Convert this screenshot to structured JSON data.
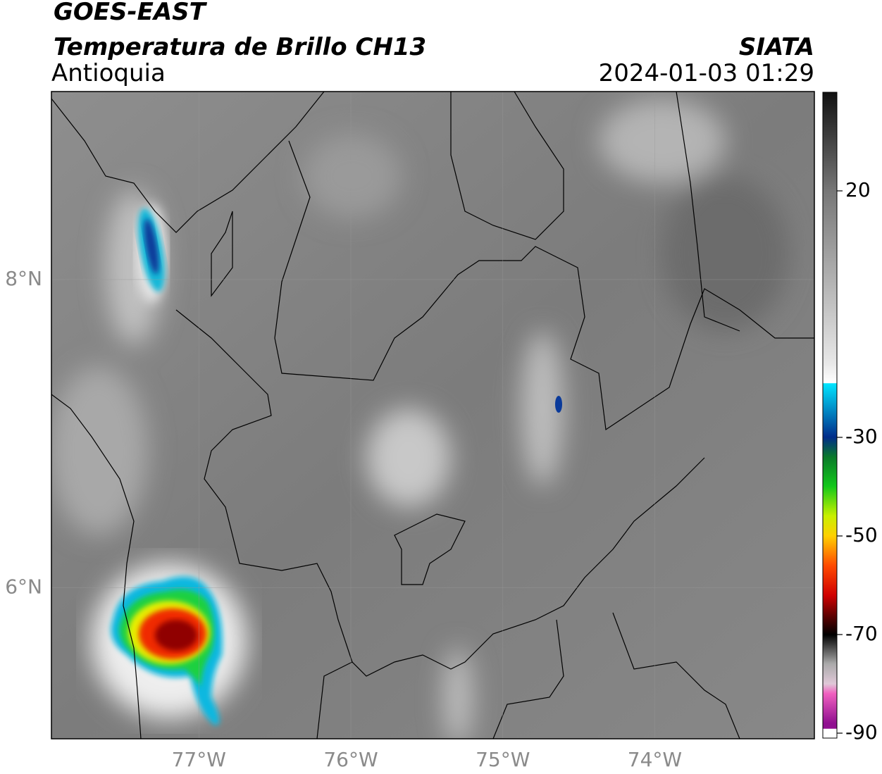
{
  "header": {
    "title": "GOES-EAST",
    "subtitle": "Temperatura de Brillo CH13",
    "region": "Antioquia",
    "source": "SIATA",
    "timestamp": "2024-01-03 01:29"
  },
  "map": {
    "xlim": [
      -77.97,
      -72.95
    ],
    "ylim": [
      5.02,
      9.22
    ],
    "xticks": [
      {
        "value": -77,
        "label": "77°W"
      },
      {
        "value": -76,
        "label": "76°W"
      },
      {
        "value": -75,
        "label": "75°W"
      },
      {
        "value": -74,
        "label": "74°W"
      }
    ],
    "yticks": [
      {
        "value": 8,
        "label": "8°N"
      },
      {
        "value": 6,
        "label": "6°N"
      }
    ],
    "grid": true
  },
  "colorbar": {
    "lim": [
      -91,
      40
    ],
    "ticks": [
      20,
      -30,
      -50,
      -70,
      -90
    ]
  }
}
